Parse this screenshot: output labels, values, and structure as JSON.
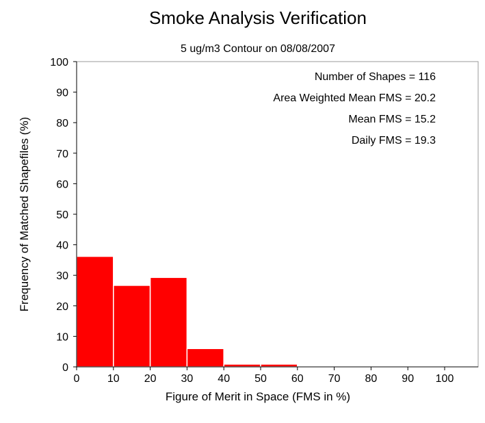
{
  "chart_data": {
    "type": "bar",
    "title": "Smoke Analysis Verification",
    "subtitle": "5 ug/m3 Contour on 08/08/2007",
    "xlabel": "Figure of Merit in Space (FMS in %)",
    "ylabel": "Frequency of Matched Shapefiles (%)",
    "xlim": [
      0,
      110
    ],
    "ylim": [
      0,
      100
    ],
    "x_ticks": [
      "0",
      "10",
      "20",
      "30",
      "40",
      "50",
      "60",
      "70",
      "80",
      "90",
      "100"
    ],
    "y_ticks": [
      "0",
      "10",
      "20",
      "30",
      "40",
      "50",
      "60",
      "70",
      "80",
      "90",
      "100"
    ],
    "bins": [
      {
        "start": 0,
        "end": 10,
        "value": 36.2
      },
      {
        "start": 10,
        "end": 20,
        "value": 26.7
      },
      {
        "start": 20,
        "end": 30,
        "value": 29.3
      },
      {
        "start": 30,
        "end": 40,
        "value": 6.0
      },
      {
        "start": 40,
        "end": 50,
        "value": 0.9
      },
      {
        "start": 50,
        "end": 60,
        "value": 0.9
      },
      {
        "start": 60,
        "end": 70,
        "value": 0
      },
      {
        "start": 70,
        "end": 80,
        "value": 0
      },
      {
        "start": 80,
        "end": 90,
        "value": 0
      },
      {
        "start": 90,
        "end": 100,
        "value": 0
      },
      {
        "start": 100,
        "end": 110,
        "value": 0
      }
    ],
    "bar_color": "#ff0000",
    "grid": false,
    "annotations": [
      "Number of Shapes = 116",
      "Area Weighted Mean FMS = 20.2",
      "Mean FMS = 15.2",
      "Daily FMS = 19.3"
    ]
  }
}
